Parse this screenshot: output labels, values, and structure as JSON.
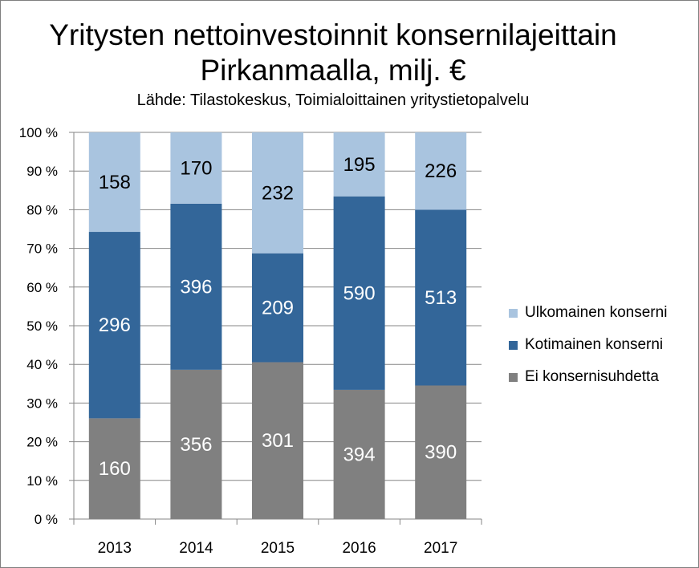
{
  "title_line1": "Yritysten nettoinvestoinnit konsernilajeittain",
  "title_line2": "Pirkanmaalla, milj. €",
  "subtitle": "Lähde: Tilastokeskus, Toimialoittainen yritystietopalvelu",
  "chart_data": {
    "type": "bar",
    "stacked": true,
    "normalized": "percent",
    "title": "Yritysten nettoinvestoinnit konsernilajeittain Pirkanmaalla, milj. €",
    "subtitle": "Lähde: Tilastokeskus, Toimialoittainen yritystietopalvelu",
    "categories": [
      "2013",
      "2014",
      "2015",
      "2016",
      "2017"
    ],
    "series": [
      {
        "name": "Ei konsernisuhdetta",
        "values": [
          160,
          356,
          301,
          394,
          390
        ],
        "color": "#808080",
        "label_color": "#ffffff"
      },
      {
        "name": "Kotimainen konserni",
        "values": [
          296,
          396,
          209,
          590,
          513
        ],
        "color": "#336699",
        "label_color": "#ffffff"
      },
      {
        "name": "Ulkomainen konserni",
        "values": [
          158,
          170,
          232,
          195,
          226
        ],
        "color": "#a9c4df",
        "label_color": "#000000"
      }
    ],
    "ylim": [
      0,
      100
    ],
    "yticks": [
      "0 %",
      "10 %",
      "20 %",
      "30 %",
      "40 %",
      "50 %",
      "60 %",
      "70 %",
      "80 %",
      "90 %",
      "100 %"
    ],
    "xlabel": "",
    "ylabel": "",
    "grid": true,
    "legend": "right"
  }
}
